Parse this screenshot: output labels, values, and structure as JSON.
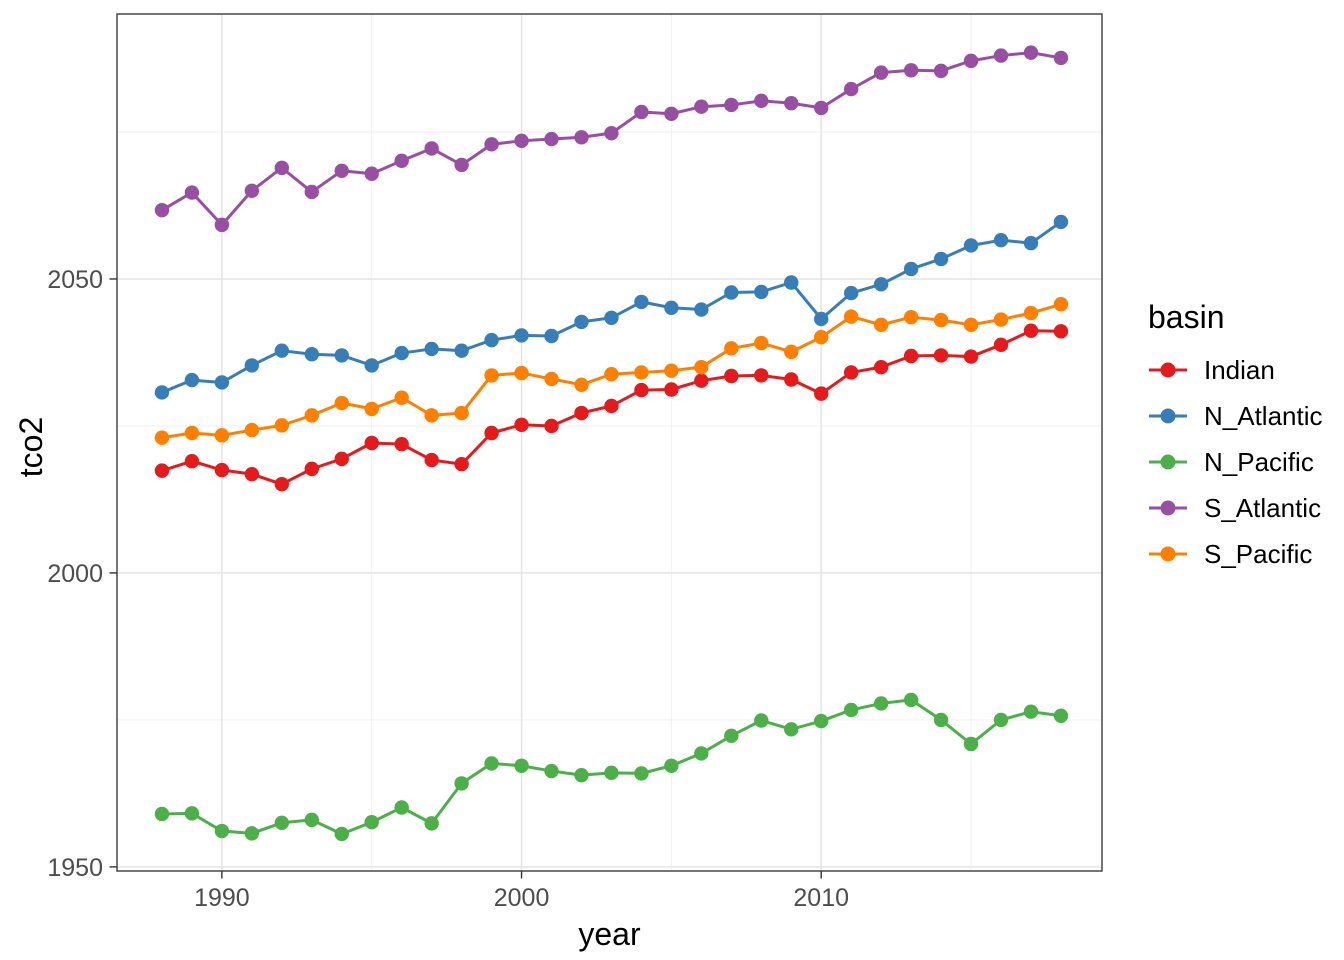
{
  "figure": {
    "background": "#FFFFFF"
  },
  "chart_data": {
    "type": "line",
    "title": "",
    "xlabel": "year",
    "ylabel": "tco2",
    "x": [
      1988,
      1989,
      1990,
      1991,
      1992,
      1993,
      1994,
      1995,
      1996,
      1997,
      1998,
      1999,
      2000,
      2001,
      2002,
      2003,
      2004,
      2005,
      2006,
      2007,
      2008,
      2009,
      2010,
      2011,
      2012,
      2013,
      2014,
      2015,
      2016,
      2017,
      2018
    ],
    "series": [
      {
        "name": "Indian",
        "color": "#E41A1C",
        "values": [
          2017.4,
          2019.0,
          2017.5,
          2016.8,
          2015.1,
          2017.7,
          2019.4,
          2022.1,
          2021.9,
          2019.2,
          2018.5,
          2023.8,
          2025.2,
          2025.0,
          2027.2,
          2028.4,
          2031.1,
          2031.2,
          2032.7,
          2033.5,
          2033.6,
          2032.9,
          2030.5,
          2034.1,
          2035.0,
          2036.9,
          2037.0,
          2036.8,
          2038.8,
          2041.2,
          2041.1
        ]
      },
      {
        "name": "N_Atlantic",
        "color": "#377EB8",
        "values": [
          2030.7,
          2032.8,
          2032.4,
          2035.3,
          2037.8,
          2037.2,
          2037.0,
          2035.3,
          2037.4,
          2038.1,
          2037.8,
          2039.6,
          2040.4,
          2040.3,
          2042.7,
          2043.4,
          2046.1,
          2045.1,
          2044.8,
          2047.7,
          2047.8,
          2049.4,
          2043.2,
          2047.6,
          2049.1,
          2051.7,
          2053.4,
          2055.7,
          2056.6,
          2056.1,
          2059.7
        ]
      },
      {
        "name": "N_Pacific",
        "color": "#4DAF4A",
        "values": [
          1959.0,
          1959.1,
          1956.1,
          1955.7,
          1957.5,
          1958.0,
          1955.6,
          1957.6,
          1960.1,
          1957.4,
          1964.2,
          1967.6,
          1967.2,
          1966.3,
          1965.6,
          1966.0,
          1965.9,
          1967.2,
          1969.3,
          1972.3,
          1974.9,
          1973.4,
          1974.8,
          1976.7,
          1977.8,
          1978.4,
          1975.0,
          1970.9,
          1975.0,
          1976.4,
          1975.7
        ]
      },
      {
        "name": "S_Atlantic",
        "color": "#984EA3",
        "values": [
          2061.7,
          2064.7,
          2059.2,
          2065.0,
          2068.9,
          2064.8,
          2068.4,
          2067.9,
          2070.1,
          2072.2,
          2069.4,
          2072.9,
          2073.5,
          2073.8,
          2074.1,
          2074.8,
          2078.4,
          2078.1,
          2079.3,
          2079.6,
          2080.3,
          2079.9,
          2079.1,
          2082.3,
          2085.1,
          2085.5,
          2085.4,
          2087.1,
          2088.0,
          2088.5,
          2087.6
        ]
      },
      {
        "name": "S_Pacific",
        "color": "#FF7F00",
        "values": [
          2023.0,
          2023.8,
          2023.4,
          2024.3,
          2025.1,
          2026.8,
          2028.9,
          2027.9,
          2029.8,
          2026.8,
          2027.2,
          2033.6,
          2034.0,
          2033.0,
          2032.0,
          2033.8,
          2034.1,
          2034.4,
          2035.0,
          2038.2,
          2039.1,
          2037.6,
          2040.1,
          2043.6,
          2042.2,
          2043.5,
          2043.0,
          2042.2,
          2043.1,
          2044.2,
          2045.7
        ]
      }
    ],
    "xlim": [
      1986.5,
      2019.37
    ],
    "ylim": [
      1949.3,
      2095.07
    ],
    "x_ticks": {
      "values": [
        1990,
        2000,
        2010
      ],
      "labels": [
        "1990",
        "2000",
        "2010"
      ]
    },
    "y_ticks": {
      "values": [
        1950,
        2000,
        2050
      ],
      "labels": [
        "1950",
        "2000",
        "2050"
      ]
    },
    "x_minor_ticks": [
      1995,
      2005,
      2015
    ],
    "y_minor_ticks": [
      1975,
      2025,
      2075
    ],
    "grid": "major+minor",
    "legend": {
      "title": "basin",
      "position": "right"
    },
    "style": {
      "panel_border": "#3C3C3C",
      "grid_major": "#E4E4E4",
      "grid_minor": "#EFEFEF",
      "tick_mark_color": "#333333",
      "tick_label_color": "#4D4D4D",
      "axis_title_color": "#000000",
      "line_width": 3,
      "marker_radius": 7.2
    }
  }
}
